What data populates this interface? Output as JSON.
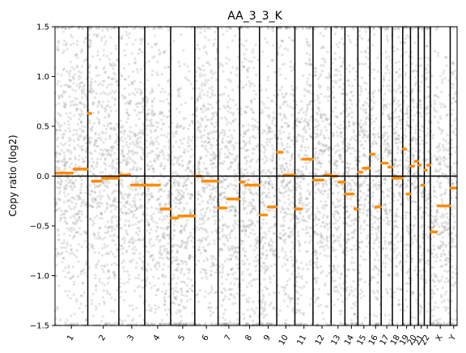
{
  "chart_data": {
    "type": "scatter",
    "title": "AA_3_3_K",
    "xlabel": "",
    "ylabel": "Copy ratio (log2)",
    "ylim": [
      -1.5,
      1.5
    ],
    "yticks": [
      -1.5,
      -1.0,
      -0.5,
      0.0,
      0.5,
      1.0,
      1.5
    ],
    "ytick_labels": [
      "−1.5",
      "−1.0",
      "−0.5",
      "0.0",
      "0.5",
      "1.0",
      "1.5"
    ],
    "x_axis": "genomic position, chromosomes in order",
    "grid": false,
    "colors": {
      "points": "#9e9e9e",
      "segments": "#ff8c00",
      "lines": "#000000"
    },
    "chromosomes": [
      {
        "label": "1",
        "weight": 38,
        "segments": [
          {
            "start": 0.0,
            "end": 0.55,
            "y": 0.03
          },
          {
            "start": 0.55,
            "end": 1.0,
            "y": 0.07
          }
        ]
      },
      {
        "label": "2",
        "weight": 36,
        "segments": [
          {
            "start": 0.0,
            "end": 0.12,
            "y": 0.63
          },
          {
            "start": 0.12,
            "end": 0.45,
            "y": -0.05
          },
          {
            "start": 0.45,
            "end": 1.0,
            "y": -0.02
          }
        ]
      },
      {
        "label": "3",
        "weight": 30,
        "segments": [
          {
            "start": 0.0,
            "end": 0.45,
            "y": 0.01
          },
          {
            "start": 0.45,
            "end": 1.0,
            "y": -0.09
          }
        ]
      },
      {
        "label": "4",
        "weight": 30,
        "segments": [
          {
            "start": 0.0,
            "end": 0.6,
            "y": -0.09
          },
          {
            "start": 0.6,
            "end": 1.0,
            "y": -0.33
          }
        ]
      },
      {
        "label": "5",
        "weight": 28,
        "segments": [
          {
            "start": 0.0,
            "end": 0.3,
            "y": -0.42
          },
          {
            "start": 0.3,
            "end": 1.0,
            "y": -0.4
          }
        ]
      },
      {
        "label": "6",
        "weight": 27,
        "segments": [
          {
            "start": 0.0,
            "end": 0.3,
            "y": 0.0
          },
          {
            "start": 0.3,
            "end": 1.0,
            "y": -0.05
          }
        ]
      },
      {
        "label": "7",
        "weight": 25,
        "segments": [
          {
            "start": 0.0,
            "end": 0.4,
            "y": -0.32
          },
          {
            "start": 0.4,
            "end": 1.0,
            "y": -0.23
          }
        ]
      },
      {
        "label": "8",
        "weight": 23,
        "segments": [
          {
            "start": 0.0,
            "end": 0.25,
            "y": -0.06
          },
          {
            "start": 0.25,
            "end": 1.0,
            "y": -0.09
          }
        ]
      },
      {
        "label": "9",
        "weight": 20,
        "segments": [
          {
            "start": 0.0,
            "end": 0.45,
            "y": -0.39
          },
          {
            "start": 0.45,
            "end": 1.0,
            "y": -0.31
          }
        ]
      },
      {
        "label": "10",
        "weight": 21,
        "segments": [
          {
            "start": 0.0,
            "end": 0.35,
            "y": 0.24
          },
          {
            "start": 0.35,
            "end": 1.0,
            "y": 0.01
          }
        ]
      },
      {
        "label": "11",
        "weight": 21,
        "segments": [
          {
            "start": 0.0,
            "end": 0.4,
            "y": -0.33
          },
          {
            "start": 0.4,
            "end": 1.0,
            "y": 0.17
          }
        ]
      },
      {
        "label": "12",
        "weight": 21,
        "segments": [
          {
            "start": 0.0,
            "end": 0.6,
            "y": -0.04
          },
          {
            "start": 0.6,
            "end": 1.0,
            "y": 0.01
          }
        ]
      },
      {
        "label": "13",
        "weight": 16,
        "segments": [
          {
            "start": 0.0,
            "end": 0.5,
            "y": 0.0
          },
          {
            "start": 0.5,
            "end": 1.0,
            "y": -0.06
          }
        ]
      },
      {
        "label": "14",
        "weight": 15,
        "segments": [
          {
            "start": 0.0,
            "end": 0.7,
            "y": -0.18
          },
          {
            "start": 0.7,
            "end": 1.0,
            "y": -0.33
          }
        ]
      },
      {
        "label": "15",
        "weight": 14,
        "segments": [
          {
            "start": 0.0,
            "end": 0.4,
            "y": 0.04
          },
          {
            "start": 0.4,
            "end": 1.0,
            "y": 0.08
          }
        ]
      },
      {
        "label": "16",
        "weight": 13,
        "segments": [
          {
            "start": 0.0,
            "end": 0.45,
            "y": 0.22
          },
          {
            "start": 0.45,
            "end": 1.0,
            "y": -0.31
          }
        ]
      },
      {
        "label": "17",
        "weight": 13,
        "segments": [
          {
            "start": 0.0,
            "end": 0.6,
            "y": 0.13
          },
          {
            "start": 0.6,
            "end": 1.0,
            "y": 0.09
          }
        ]
      },
      {
        "label": "18",
        "weight": 12,
        "segments": [
          {
            "start": 0.0,
            "end": 1.0,
            "y": -0.02
          }
        ]
      },
      {
        "label": "19",
        "weight": 9,
        "segments": [
          {
            "start": 0.0,
            "end": 0.45,
            "y": 0.27
          },
          {
            "start": 0.45,
            "end": 1.0,
            "y": -0.18
          }
        ]
      },
      {
        "label": "20",
        "weight": 9,
        "segments": [
          {
            "start": 0.0,
            "end": 0.5,
            "y": 0.1
          },
          {
            "start": 0.5,
            "end": 1.0,
            "y": 0.15
          }
        ]
      },
      {
        "label": "21",
        "weight": 7,
        "segments": [
          {
            "start": 0.0,
            "end": 0.45,
            "y": 0.11
          },
          {
            "start": 0.45,
            "end": 1.0,
            "y": -0.09
          }
        ]
      },
      {
        "label": "22",
        "weight": 7,
        "segments": [
          {
            "start": 0.0,
            "end": 0.45,
            "y": 0.06
          },
          {
            "start": 0.45,
            "end": 1.0,
            "y": 0.11
          }
        ]
      },
      {
        "label": "X",
        "weight": 23,
        "segments": [
          {
            "start": 0.0,
            "end": 0.35,
            "y": -0.56
          },
          {
            "start": 0.35,
            "end": 1.0,
            "y": -0.3
          }
        ]
      },
      {
        "label": "Y",
        "weight": 8,
        "segments": [
          {
            "start": 0.0,
            "end": 1.0,
            "y": -0.12
          }
        ]
      }
    ]
  }
}
